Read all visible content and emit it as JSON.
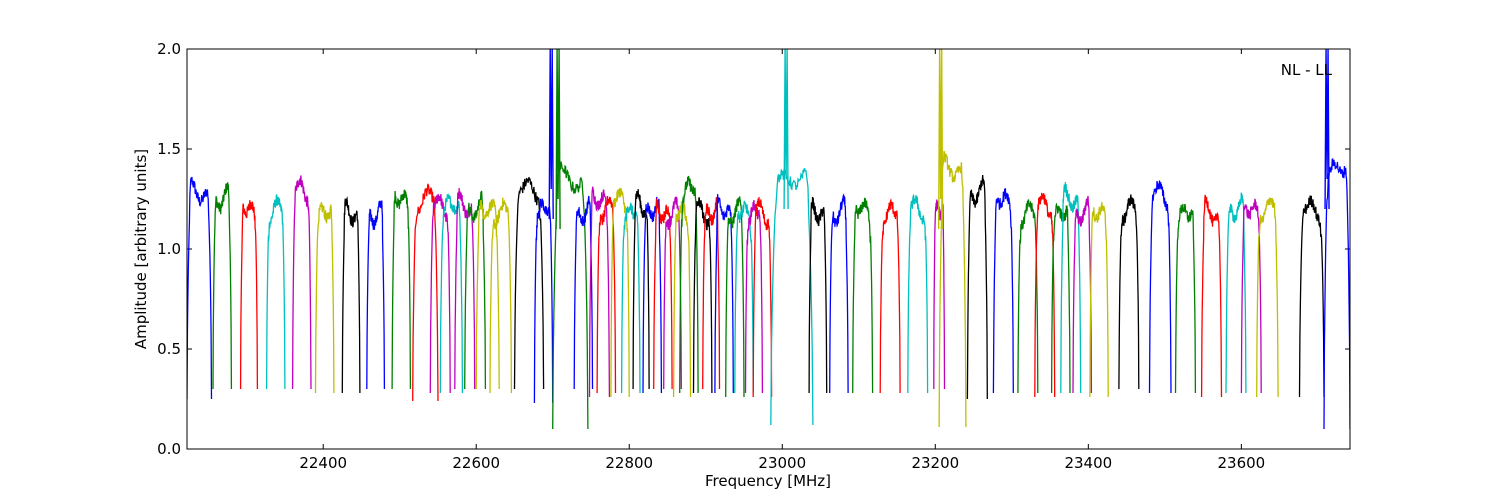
{
  "chart_data": {
    "type": "line",
    "annotation": "NL - LL",
    "xlabel": "Frequency [MHz]",
    "ylabel": "Amplitude [arbitrary units]",
    "xlim": [
      22222,
      23742
    ],
    "ylim": [
      0.0,
      2.0
    ],
    "xticks": [
      22400,
      22600,
      22800,
      23000,
      23200,
      23400,
      23600
    ],
    "xtick_labels": [
      "22400",
      "22600",
      "22800",
      "23000",
      "23200",
      "23400",
      "23600"
    ],
    "yticks": [
      0.0,
      0.5,
      1.0,
      1.5,
      2.0
    ],
    "ytick_labels": [
      "0.0",
      "0.5",
      "1.0",
      "1.5",
      "2.0"
    ],
    "grid": false,
    "legend": "none",
    "colors": {
      "blue": "#0000ff",
      "green": "#007f00",
      "red": "#ff0000",
      "cyan": "#00bfbf",
      "magenta": "#bf00bf",
      "olive": "#bfbf00",
      "black": "#000000"
    },
    "bands": [
      {
        "color": "blue",
        "x0": 22222,
        "x1": 22254,
        "level": 1.28,
        "min": 0.25
      },
      {
        "color": "green",
        "x0": 22256,
        "x1": 22280,
        "level": 1.25,
        "min": 0.3
      },
      {
        "color": "red",
        "x0": 22292,
        "x1": 22314,
        "level": 1.2,
        "min": 0.3
      },
      {
        "color": "cyan",
        "x0": 22326,
        "x1": 22350,
        "level": 1.2,
        "min": 0.3
      },
      {
        "color": "magenta",
        "x0": 22360,
        "x1": 22384,
        "level": 1.3,
        "min": 0.3
      },
      {
        "color": "olive",
        "x0": 22390,
        "x1": 22414,
        "level": 1.18,
        "min": 0.28
      },
      {
        "color": "black",
        "x0": 22425,
        "x1": 22448,
        "level": 1.18,
        "min": 0.28
      },
      {
        "color": "blue",
        "x0": 22457,
        "x1": 22480,
        "level": 1.17,
        "min": 0.3
      },
      {
        "color": "green",
        "x0": 22490,
        "x1": 22514,
        "level": 1.25,
        "min": 0.3
      },
      {
        "color": "red",
        "x0": 22517,
        "x1": 22550,
        "level": 1.25,
        "min": 0.24
      },
      {
        "color": "magenta",
        "x0": 22540,
        "x1": 22566,
        "level": 1.22,
        "min": 0.28
      },
      {
        "color": "cyan",
        "x0": 22553,
        "x1": 22582,
        "level": 1.22,
        "min": 0.28
      },
      {
        "color": "magenta",
        "x0": 22572,
        "x1": 22598,
        "level": 1.22,
        "min": 0.3
      },
      {
        "color": "green",
        "x0": 22585,
        "x1": 22612,
        "level": 1.2,
        "min": 0.3
      },
      {
        "color": "olive",
        "x0": 22600,
        "x1": 22630,
        "level": 1.2,
        "min": 0.3
      },
      {
        "color": "olive",
        "x0": 22618,
        "x1": 22646,
        "level": 1.18,
        "min": 0.28
      },
      {
        "color": "black",
        "x0": 22650,
        "x1": 22688,
        "level": 1.3,
        "min": 0.3
      },
      {
        "color": "blue",
        "x0": 22676,
        "x1": 22700,
        "level": 1.2,
        "min": 0.23
      },
      {
        "color": "green",
        "x0": 22700,
        "x1": 22746,
        "level": 1.35,
        "min": 0.1
      },
      {
        "color": "blue",
        "x0": 22728,
        "x1": 22752,
        "level": 1.18,
        "min": 0.3
      },
      {
        "color": "magenta",
        "x0": 22748,
        "x1": 22774,
        "level": 1.25,
        "min": 0.26
      },
      {
        "color": "red",
        "x0": 22758,
        "x1": 22782,
        "level": 1.2,
        "min": 0.28
      },
      {
        "color": "olive",
        "x0": 22776,
        "x1": 22800,
        "level": 1.25,
        "min": 0.26
      },
      {
        "color": "cyan",
        "x0": 22790,
        "x1": 22814,
        "level": 1.18,
        "min": 0.28
      },
      {
        "color": "black",
        "x0": 22805,
        "x1": 22826,
        "level": 1.22,
        "min": 0.3
      },
      {
        "color": "blue",
        "x0": 22818,
        "x1": 22842,
        "level": 1.2,
        "min": 0.28
      },
      {
        "color": "red",
        "x0": 22832,
        "x1": 22856,
        "level": 1.18,
        "min": 0.3
      },
      {
        "color": "magenta",
        "x0": 22845,
        "x1": 22868,
        "level": 1.18,
        "min": 0.3
      },
      {
        "color": "olive",
        "x0": 22858,
        "x1": 22880,
        "level": 1.18,
        "min": 0.26
      },
      {
        "color": "green",
        "x0": 22866,
        "x1": 22890,
        "level": 1.3,
        "min": 0.28
      },
      {
        "color": "black",
        "x0": 22884,
        "x1": 22908,
        "level": 1.18,
        "min": 0.28
      },
      {
        "color": "red",
        "x0": 22896,
        "x1": 22918,
        "level": 1.18,
        "min": 0.3
      },
      {
        "color": "blue",
        "x0": 22912,
        "x1": 22936,
        "level": 1.2,
        "min": 0.28
      },
      {
        "color": "green",
        "x0": 22926,
        "x1": 22950,
        "level": 1.18,
        "min": 0.26
      },
      {
        "color": "cyan",
        "x0": 22938,
        "x1": 22962,
        "level": 1.18,
        "min": 0.28
      },
      {
        "color": "magenta",
        "x0": 22952,
        "x1": 22974,
        "level": 1.18,
        "min": 0.28
      },
      {
        "color": "red",
        "x0": 22962,
        "x1": 22986,
        "level": 1.18,
        "min": 0.26
      },
      {
        "color": "cyan",
        "x0": 22985,
        "x1": 23040,
        "level": 1.35,
        "min": 0.12
      },
      {
        "color": "black",
        "x0": 23035,
        "x1": 23058,
        "level": 1.18,
        "min": 0.28
      },
      {
        "color": "blue",
        "x0": 23062,
        "x1": 23086,
        "level": 1.18,
        "min": 0.28
      },
      {
        "color": "green",
        "x0": 23092,
        "x1": 23118,
        "level": 1.2,
        "min": 0.28
      },
      {
        "color": "red",
        "x0": 23128,
        "x1": 23154,
        "level": 1.18,
        "min": 0.28
      },
      {
        "color": "cyan",
        "x0": 23164,
        "x1": 23190,
        "level": 1.2,
        "min": 0.28
      },
      {
        "color": "magenta",
        "x0": 23198,
        "x1": 23212,
        "level": 1.2,
        "min": 0.3
      },
      {
        "color": "olive",
        "x0": 23205,
        "x1": 23240,
        "level": 1.4,
        "min": 0.11
      },
      {
        "color": "black",
        "x0": 23242,
        "x1": 23268,
        "level": 1.28,
        "min": 0.25
      },
      {
        "color": "blue",
        "x0": 23276,
        "x1": 23302,
        "level": 1.25,
        "min": 0.28
      },
      {
        "color": "green",
        "x0": 23308,
        "x1": 23334,
        "level": 1.18,
        "min": 0.28
      },
      {
        "color": "red",
        "x0": 23330,
        "x1": 23356,
        "level": 1.22,
        "min": 0.26
      },
      {
        "color": "green",
        "x0": 23352,
        "x1": 23376,
        "level": 1.18,
        "min": 0.28
      },
      {
        "color": "cyan",
        "x0": 23364,
        "x1": 23390,
        "level": 1.25,
        "min": 0.28
      },
      {
        "color": "magenta",
        "x0": 23380,
        "x1": 23404,
        "level": 1.18,
        "min": 0.28
      },
      {
        "color": "olive",
        "x0": 23402,
        "x1": 23426,
        "level": 1.18,
        "min": 0.26
      },
      {
        "color": "black",
        "x0": 23440,
        "x1": 23466,
        "level": 1.2,
        "min": 0.3
      },
      {
        "color": "blue",
        "x0": 23480,
        "x1": 23508,
        "level": 1.28,
        "min": 0.28
      },
      {
        "color": "green",
        "x0": 23514,
        "x1": 23540,
        "level": 1.18,
        "min": 0.28
      },
      {
        "color": "red",
        "x0": 23548,
        "x1": 23574,
        "level": 1.18,
        "min": 0.26
      },
      {
        "color": "cyan",
        "x0": 23580,
        "x1": 23606,
        "level": 1.2,
        "min": 0.28
      },
      {
        "color": "magenta",
        "x0": 23600,
        "x1": 23626,
        "level": 1.2,
        "min": 0.28
      },
      {
        "color": "olive",
        "x0": 23620,
        "x1": 23648,
        "level": 1.2,
        "min": 0.26
      },
      {
        "color": "black",
        "x0": 23676,
        "x1": 23708,
        "level": 1.2,
        "min": 0.26
      },
      {
        "color": "blue",
        "x0": 23708,
        "x1": 23742,
        "level": 1.4,
        "min": 0.1
      }
    ],
    "spikes": [
      {
        "color": "blue",
        "x": 22698,
        "low": 1.15,
        "high": 2.0
      },
      {
        "color": "green",
        "x": 22707,
        "low": 1.1,
        "high": 2.0
      },
      {
        "color": "cyan",
        "x": 23005,
        "low": 1.2,
        "high": 2.0
      },
      {
        "color": "olive",
        "x": 23207,
        "low": 1.1,
        "high": 2.0
      },
      {
        "color": "blue",
        "x": 23712,
        "low": 1.2,
        "high": 2.0
      }
    ]
  }
}
